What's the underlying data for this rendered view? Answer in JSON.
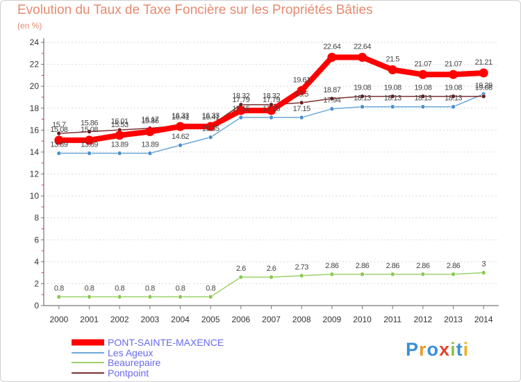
{
  "title": "Evolution du Taux de Taxe Foncière sur les Propriétés Bâties",
  "subtitle": "(en %)",
  "logo": {
    "text": "Proxiti",
    "colors": [
      "#3a8fd8",
      "#e89a2a",
      "#3a8fd8",
      "#e0452c",
      "#8bc34a",
      "#3a8fd8",
      "#f0b020"
    ]
  },
  "chart_data": {
    "type": "line",
    "title": "Evolution du Taux de Taxe Foncière sur les Propriétés Bâties",
    "ylabel": "(en %)",
    "ylim": [
      0,
      24
    ],
    "yticks": [
      0,
      2,
      4,
      6,
      8,
      10,
      12,
      14,
      16,
      18,
      20,
      22,
      24
    ],
    "x": [
      "2000",
      "2001",
      "2002",
      "2003",
      "2004",
      "2005",
      "2006",
      "2007",
      "2008",
      "2009",
      "2010",
      "2011",
      "2012",
      "2013",
      "2014"
    ],
    "grid": "horizontal dotted",
    "legend_position": "bottom-left",
    "series": [
      {
        "name": "PONT-SAINTE-MAXENCE",
        "color": "#ff0000",
        "values": [
          15.08,
          15.08,
          15.53,
          15.86,
          16.33,
          16.33,
          17.79,
          17.79,
          19.61,
          22.64,
          22.64,
          21.5,
          21.07,
          21.07,
          21.21
        ],
        "labels": [
          "15.08",
          "15.08",
          "15.53",
          "15.86",
          "16.33",
          "16.33",
          "17.79",
          "17.79",
          "19.61",
          "22.64",
          "22.64",
          "21.5",
          "21.07",
          "21.07",
          "21.21"
        ]
      },
      {
        "name": "Les Ageux",
        "color": "#6aa8d8",
        "values": [
          13.89,
          13.89,
          13.89,
          13.89,
          14.62,
          15.35,
          17.15,
          17.15,
          17.15,
          17.94,
          18.13,
          18.13,
          18.13,
          18.13,
          19.29
        ],
        "labels": [
          "13.89",
          "13.89",
          "13.89",
          "13.89",
          "14.62",
          "15.35",
          "17.15",
          "17.15",
          "17.15",
          "17.94",
          "18.13",
          "18.13",
          "18.13",
          "18.13",
          "19.29"
        ]
      },
      {
        "name": "Beaurepaire",
        "color": "#9cd06a",
        "values": [
          0.8,
          0.8,
          0.8,
          0.8,
          0.8,
          0.8,
          2.6,
          2.6,
          2.73,
          2.86,
          2.86,
          2.86,
          2.86,
          2.86,
          3
        ],
        "labels": [
          "0.8",
          "0.8",
          "0.8",
          "0.8",
          "0.8",
          "0.8",
          "2.6",
          "2.6",
          "2.73",
          "2.86",
          "2.86",
          "2.86",
          "2.86",
          "2.86",
          "3"
        ]
      },
      {
        "name": "Pontpoint",
        "color": "#7d3030",
        "values": [
          15.7,
          15.86,
          16.01,
          16.17,
          16.41,
          16.41,
          18.32,
          18.32,
          18.5,
          18.87,
          19.08,
          19.08,
          19.08,
          19.08,
          19.08
        ],
        "labels": [
          "15.7",
          "15.86",
          "16.01",
          "16.17",
          "16.41",
          "16.41",
          "18.32",
          "18.32",
          "18.5",
          "18.87",
          "19.08",
          "19.08",
          "19.08",
          "19.08",
          "19.08"
        ]
      }
    ]
  }
}
